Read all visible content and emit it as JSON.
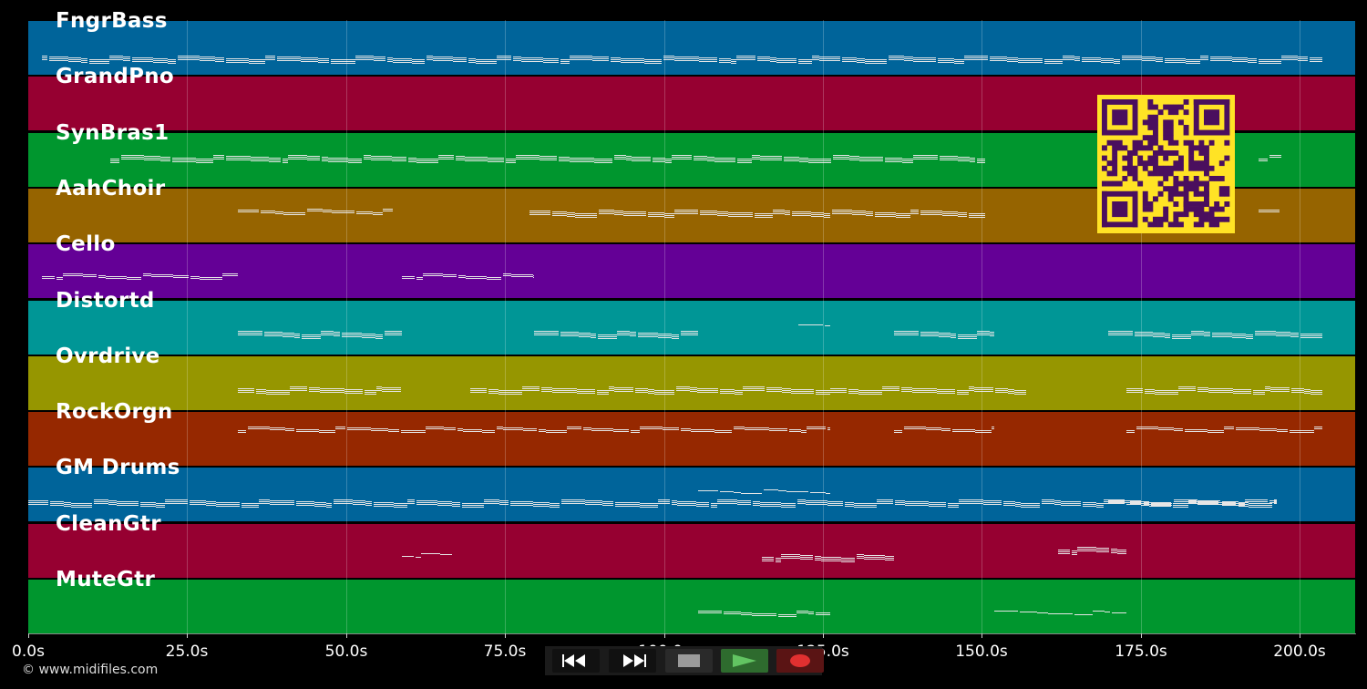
{
  "tracks": [
    {
      "name": "FngrBass",
      "color": "#00649a"
    },
    {
      "name": "GrandPno",
      "color": "#960031"
    },
    {
      "name": "SynBras1",
      "color": "#00962e"
    },
    {
      "name": "AahChoir",
      "color": "#966400"
    },
    {
      "name": "Cello",
      "color": "#640096"
    },
    {
      "name": "Distortd",
      "color": "#009696"
    },
    {
      "name": "Ovrdrive",
      "color": "#969600"
    },
    {
      "name": "RockOrgn",
      "color": "#962800"
    },
    {
      "name": "GM Drums",
      "color": "#00649a"
    },
    {
      "name": "CleanGtr",
      "color": "#960031"
    },
    {
      "name": "MuteGtr",
      "color": "#00962e"
    }
  ],
  "timeline": {
    "ticks": [
      "0.0s",
      "25.0s",
      "50.0s",
      "75.0s",
      "100.0s",
      "125.0s",
      "150.0s",
      "175.0s",
      "200.0s"
    ]
  },
  "copyright": "© www.midifiles.com",
  "qr_icon": "qr-code-icon",
  "transport": {
    "rewind_icon": "rewind-icon",
    "fast_forward_icon": "fast-forward-icon",
    "stop_icon": "stop-icon",
    "play_icon": "play-icon",
    "record_icon": "record-icon"
  },
  "colors": {
    "background": "#000000",
    "note": "#e6e6e6",
    "qr_fg": "#4a0f5e",
    "qr_bg": "#ffe325",
    "play_bg": "#2e6b2e",
    "play_fg": "#62c462",
    "record_bg": "#5a1414",
    "record_fg": "#e03030"
  }
}
